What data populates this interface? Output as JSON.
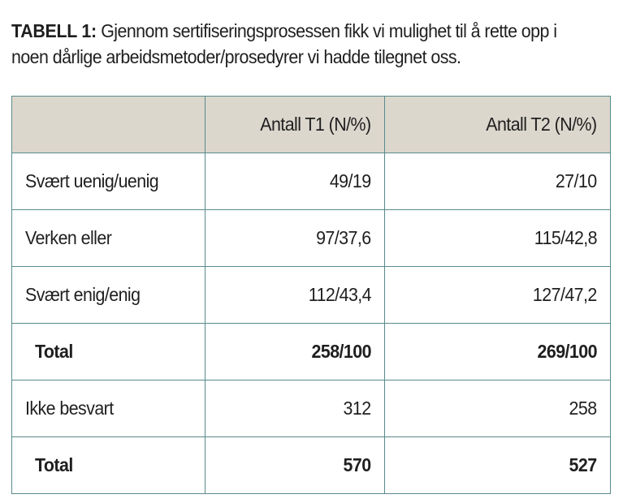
{
  "caption": {
    "lead": "TABELL 1:",
    "text": " Gjennom sertifiseringsprosessen fikk vi mulighet til å rette opp i noen dårlige arbeidsmetoder/prosedyrer vi hadde tilegnet oss."
  },
  "table": {
    "headers": [
      "",
      "Antall T1 (N/%)",
      "Antall T2 (N/%)"
    ],
    "rows": [
      {
        "label": "Svært uenig/uenig",
        "t1": "49/19",
        "t2": "27/10"
      },
      {
        "label": "Verken eller",
        "t1": "97/37,6",
        "t2": "115/42,8"
      },
      {
        "label": "Svært enig/enig",
        "t1": "112/43,4",
        "t2": "127/47,2"
      },
      {
        "label": "Total",
        "t1": "258/100",
        "t2": "269/100"
      },
      {
        "label": "Ikke besvart",
        "t1": "312",
        "t2": "258"
      },
      {
        "label": "Total",
        "t1": "570",
        "t2": "527"
      }
    ]
  },
  "colors": {
    "header_fill": "#dcd7cd",
    "border": "#5a8a8c",
    "text": "#1f1f1f"
  }
}
